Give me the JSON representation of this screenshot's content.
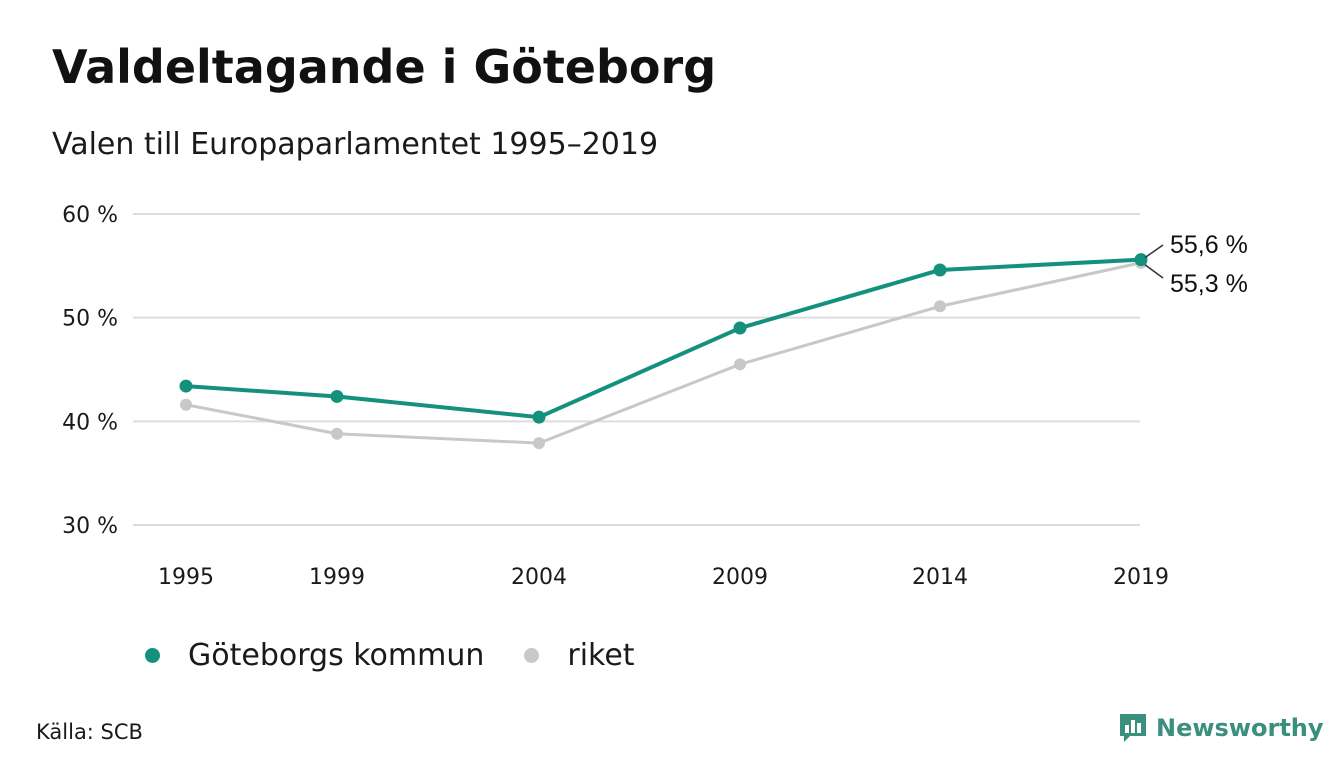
{
  "title": "Valdeltagande i Göteborg",
  "subtitle": "Valen till Europaparlamentet 1995–2019",
  "source": "Källa: SCB",
  "brand": {
    "name": "Newsworthy",
    "color": "#3a8f7f",
    "icon": "bar-chart-icon"
  },
  "colors": {
    "goteborg": "#14917d",
    "riket": "#c8c8c8",
    "grid": "#dddddd"
  },
  "legend": [
    {
      "label": "Göteborgs kommun",
      "color": "#14917d"
    },
    {
      "label": "riket",
      "color": "#c8c8c8"
    }
  ],
  "end_labels": [
    "55,6 %",
    "55,3 %"
  ],
  "chart_data": {
    "type": "line",
    "title": "Valdeltagande i Göteborg",
    "subtitle": "Valen till Europaparlamentet 1995–2019",
    "x": [
      "1995",
      "1999",
      "2004",
      "2009",
      "2014",
      "2019"
    ],
    "ylim": [
      30,
      60
    ],
    "y_ticks": [
      30,
      40,
      50,
      60
    ],
    "y_tick_labels": [
      "30 %",
      "40 %",
      "50 %",
      "60 %"
    ],
    "grid": true,
    "legend_position": "bottom",
    "series": [
      {
        "name": "Göteborgs kommun",
        "values": [
          43.4,
          42.4,
          40.4,
          49.0,
          54.6,
          55.6
        ]
      },
      {
        "name": "riket",
        "values": [
          41.6,
          38.8,
          37.9,
          45.5,
          51.1,
          55.3
        ]
      }
    ]
  }
}
